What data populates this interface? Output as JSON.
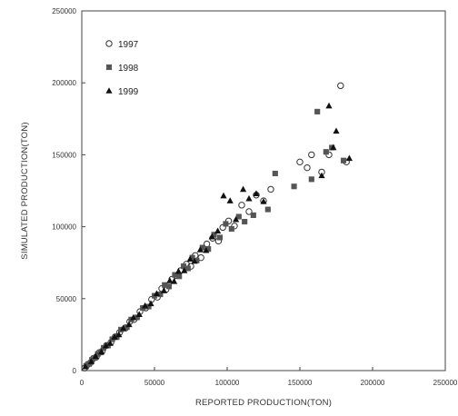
{
  "chart_data": {
    "type": "scatter",
    "title": "",
    "xlabel": "REPORTED PRODUCTION(TON)",
    "ylabel": "SIMULATED PRODUCTION(TON)",
    "xlim": [
      0,
      250000
    ],
    "ylim": [
      0,
      250000
    ],
    "x_ticks": [
      0,
      50000,
      100000,
      150000,
      200000,
      250000
    ],
    "y_ticks": [
      0,
      50000,
      100000,
      150000,
      200000,
      250000
    ],
    "x_tick_labels": [
      "0",
      "50000",
      "100000",
      "150000",
      "200000",
      "250000"
    ],
    "y_tick_labels": [
      "0",
      "50000",
      "100000",
      "150000",
      "200000",
      "250000"
    ],
    "grid": false,
    "legend_position": "top-left",
    "series": [
      {
        "name": "1997",
        "marker": "circle-open",
        "color": "#333333",
        "points": [
          [
            2000,
            1800
          ],
          [
            4000,
            4200
          ],
          [
            6000,
            5500
          ],
          [
            8000,
            8500
          ],
          [
            10000,
            9500
          ],
          [
            12000,
            12500
          ],
          [
            14000,
            13500
          ],
          [
            17000,
            17500
          ],
          [
            20000,
            19500
          ],
          [
            23000,
            23500
          ],
          [
            26000,
            26500
          ],
          [
            30000,
            29500
          ],
          [
            33000,
            34000
          ],
          [
            36000,
            35500
          ],
          [
            40000,
            41000
          ],
          [
            44000,
            43500
          ],
          [
            48000,
            49500
          ],
          [
            52000,
            51000
          ],
          [
            55000,
            57000
          ],
          [
            58000,
            56500
          ],
          [
            62000,
            63500
          ],
          [
            65000,
            66000
          ],
          [
            68000,
            69500
          ],
          [
            72000,
            74000
          ],
          [
            75000,
            72500
          ],
          [
            78000,
            80000
          ],
          [
            82000,
            78500
          ],
          [
            86000,
            88000
          ],
          [
            90000,
            92000
          ],
          [
            94000,
            90000
          ],
          [
            97000,
            99500
          ],
          [
            101000,
            104000
          ],
          [
            105000,
            100500
          ],
          [
            110000,
            115000
          ],
          [
            115000,
            110500
          ],
          [
            120000,
            122000
          ],
          [
            125000,
            118000
          ],
          [
            130000,
            126000
          ],
          [
            150000,
            145000
          ],
          [
            155000,
            141000
          ],
          [
            158000,
            150000
          ],
          [
            165000,
            138000
          ],
          [
            170000,
            150000
          ],
          [
            178000,
            198000
          ],
          [
            182000,
            145000
          ]
        ]
      },
      {
        "name": "1998",
        "marker": "square",
        "color": "#555555",
        "points": [
          [
            3000,
            3200
          ],
          [
            5000,
            4600
          ],
          [
            7000,
            7400
          ],
          [
            9000,
            8800
          ],
          [
            11000,
            11500
          ],
          [
            13000,
            12600
          ],
          [
            15000,
            15800
          ],
          [
            18000,
            17400
          ],
          [
            21000,
            21800
          ],
          [
            24000,
            23200
          ],
          [
            27000,
            28500
          ],
          [
            31000,
            30200
          ],
          [
            34000,
            35500
          ],
          [
            38000,
            37000
          ],
          [
            42000,
            43500
          ],
          [
            46000,
            44500
          ],
          [
            50000,
            52000
          ],
          [
            54000,
            53000
          ],
          [
            57000,
            59500
          ],
          [
            60000,
            58500
          ],
          [
            64000,
            66500
          ],
          [
            67000,
            65500
          ],
          [
            70000,
            72500
          ],
          [
            73000,
            71000
          ],
          [
            76000,
            78500
          ],
          [
            79000,
            76500
          ],
          [
            83000,
            85500
          ],
          [
            87000,
            84500
          ],
          [
            91000,
            94500
          ],
          [
            95000,
            92500
          ],
          [
            99000,
            102000
          ],
          [
            103000,
            98500
          ],
          [
            108000,
            107000
          ],
          [
            112000,
            103500
          ],
          [
            118000,
            108000
          ],
          [
            128000,
            112000
          ],
          [
            133000,
            137000
          ],
          [
            146000,
            128000
          ],
          [
            158000,
            133000
          ],
          [
            162000,
            180000
          ],
          [
            168000,
            152000
          ],
          [
            172000,
            155000
          ],
          [
            180000,
            146000
          ]
        ]
      },
      {
        "name": "1999",
        "marker": "triangle",
        "color": "#111111",
        "points": [
          [
            2500,
            2700
          ],
          [
            6500,
            6300
          ],
          [
            9500,
            10000
          ],
          [
            13500,
            13000
          ],
          [
            16500,
            17200
          ],
          [
            19500,
            19000
          ],
          [
            22500,
            23300
          ],
          [
            25500,
            25000
          ],
          [
            28500,
            29500
          ],
          [
            32500,
            32000
          ],
          [
            35500,
            36800
          ],
          [
            39500,
            39000
          ],
          [
            43500,
            45000
          ],
          [
            47500,
            46500
          ],
          [
            51500,
            53500
          ],
          [
            56500,
            55500
          ],
          [
            60500,
            62500
          ],
          [
            63500,
            62000
          ],
          [
            66500,
            69000
          ],
          [
            70500,
            69500
          ],
          [
            74500,
            77500
          ],
          [
            77500,
            76000
          ],
          [
            81500,
            84000
          ],
          [
            85500,
            83500
          ],
          [
            89500,
            93000
          ],
          [
            93500,
            97000
          ],
          [
            97500,
            121500
          ],
          [
            102000,
            118000
          ],
          [
            106000,
            105000
          ],
          [
            111000,
            126000
          ],
          [
            115000,
            119500
          ],
          [
            120000,
            123000
          ],
          [
            125000,
            117500
          ],
          [
            165000,
            135500
          ],
          [
            170000,
            184000
          ],
          [
            173000,
            155000
          ],
          [
            175000,
            166500
          ],
          [
            184000,
            147500
          ]
        ]
      }
    ]
  }
}
